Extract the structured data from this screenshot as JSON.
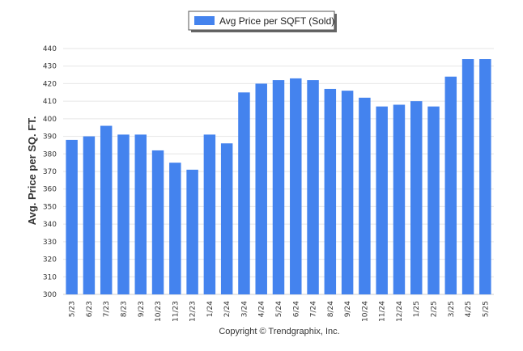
{
  "chart_data": {
    "type": "bar",
    "categories": [
      "5/23",
      "6/23",
      "7/23",
      "8/23",
      "9/23",
      "10/23",
      "11/23",
      "12/23",
      "1/24",
      "2/24",
      "3/24",
      "4/24",
      "5/24",
      "6/24",
      "7/24",
      "8/24",
      "9/24",
      "10/24",
      "11/24",
      "12/24",
      "1/25",
      "2/25",
      "3/25",
      "4/25",
      "5/25"
    ],
    "series": [
      {
        "name": "Avg Price per SQFT (Sold)",
        "color": "#4483ee",
        "values": [
          388,
          390,
          396,
          391,
          391,
          382,
          375,
          371,
          391,
          386,
          415,
          420,
          422,
          423,
          422,
          417,
          416,
          412,
          407,
          408,
          410,
          407,
          424,
          434,
          434
        ]
      }
    ],
    "ylabel": "Avg. Price per SQ. FT.",
    "xlabel": "",
    "ylim": [
      300,
      440
    ],
    "yticks": [
      300,
      310,
      320,
      330,
      340,
      350,
      360,
      370,
      380,
      390,
      400,
      410,
      420,
      430,
      440
    ],
    "grid": true,
    "legend_position": "top-center"
  },
  "footer": {
    "copyright": "Copyright © Trendgraphix, Inc."
  }
}
